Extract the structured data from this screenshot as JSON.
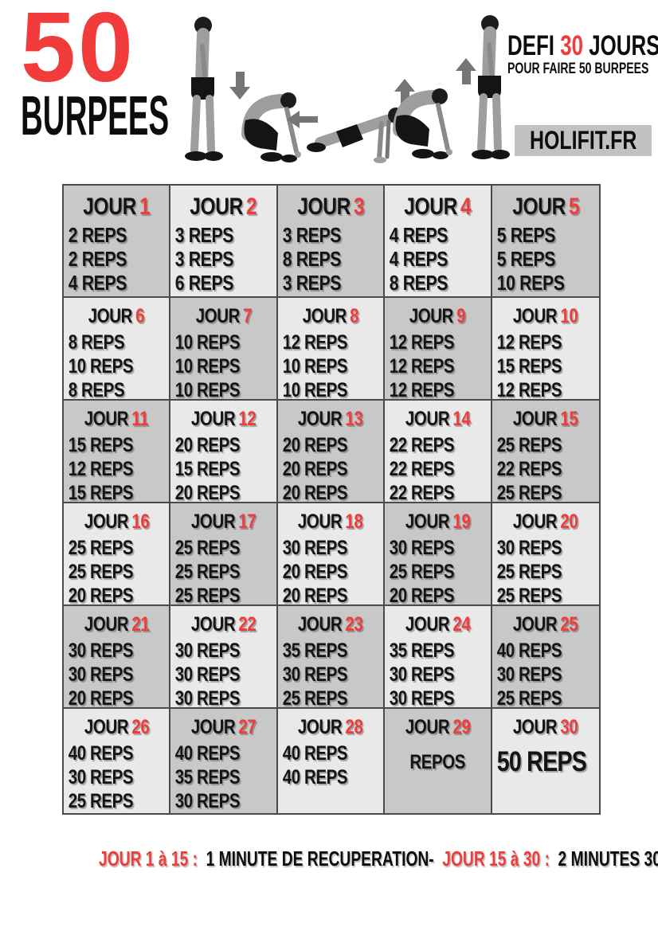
{
  "header": {
    "big_number": "50",
    "big_label": "BURPEES",
    "challenge_title_prefix": "DEFI",
    "challenge_title_number": "30",
    "challenge_title_suffix": "JOURS",
    "challenge_subtitle": "POUR FAIRE 50 BURPEES",
    "brand": "HOLIFIT.FR"
  },
  "illustration": {
    "alt": "Burpee exercise sequence: stand, squat down, plank, squat, jump up"
  },
  "colors": {
    "accent_red": "#f23b3b",
    "cell_dark": "#c8c8c8",
    "cell_light": "#e9e9e9",
    "grid_border": "#4a4a4a",
    "brand_bg": "#c2c2c2",
    "text_black": "#141414"
  },
  "grid": {
    "day_label": "JOUR",
    "days": [
      {
        "number": "1",
        "reps": [
          "2 REPS",
          "2 REPS",
          "4 REPS"
        ]
      },
      {
        "number": "2",
        "reps": [
          "3 REPS",
          "3 REPS",
          "6 REPS"
        ]
      },
      {
        "number": "3",
        "reps": [
          "3 REPS",
          "8 REPS",
          "3 REPS"
        ]
      },
      {
        "number": "4",
        "reps": [
          "4 REPS",
          "4 REPS",
          "8 REPS"
        ]
      },
      {
        "number": "5",
        "reps": [
          "5 REPS",
          "5 REPS",
          "10 REPS"
        ]
      },
      {
        "number": "6",
        "reps": [
          "8 REPS",
          "10 REPS",
          "8 REPS"
        ]
      },
      {
        "number": "7",
        "reps": [
          "10 REPS",
          "10 REPS",
          "10 REPS"
        ]
      },
      {
        "number": "8",
        "reps": [
          "12 REPS",
          "10 REPS",
          "10 REPS"
        ]
      },
      {
        "number": "9",
        "reps": [
          "12 REPS",
          "12 REPS",
          "12 REPS"
        ]
      },
      {
        "number": "10",
        "reps": [
          "12 REPS",
          "15 REPS",
          "12 REPS"
        ]
      },
      {
        "number": "11",
        "reps": [
          "15 REPS",
          "12 REPS",
          "15 REPS"
        ]
      },
      {
        "number": "12",
        "reps": [
          "20 REPS",
          "15 REPS",
          "20 REPS"
        ]
      },
      {
        "number": "13",
        "reps": [
          "20 REPS",
          "20 REPS",
          "20 REPS"
        ]
      },
      {
        "number": "14",
        "reps": [
          "22 REPS",
          "22 REPS",
          "22 REPS"
        ]
      },
      {
        "number": "15",
        "reps": [
          "25 REPS",
          "22 REPS",
          "25 REPS"
        ]
      },
      {
        "number": "16",
        "reps": [
          "25 REPS",
          "25 REPS",
          "20 REPS"
        ]
      },
      {
        "number": "17",
        "reps": [
          "25 REPS",
          "25 REPS",
          "25 REPS"
        ]
      },
      {
        "number": "18",
        "reps": [
          "30 REPS",
          "20 REPS",
          "20 REPS"
        ]
      },
      {
        "number": "19",
        "reps": [
          "30 REPS",
          "25 REPS",
          "20 REPS"
        ]
      },
      {
        "number": "20",
        "reps": [
          "30 REPS",
          "25 REPS",
          "25 REPS"
        ]
      },
      {
        "number": "21",
        "reps": [
          "30 REPS",
          "30 REPS",
          "20 REPS"
        ]
      },
      {
        "number": "22",
        "reps": [
          "30 REPS",
          "30 REPS",
          "30 REPS"
        ]
      },
      {
        "number": "23",
        "reps": [
          "35 REPS",
          "30 REPS",
          "25 REPS"
        ]
      },
      {
        "number": "24",
        "reps": [
          "35 REPS",
          "30 REPS",
          "30 REPS"
        ]
      },
      {
        "number": "25",
        "reps": [
          "40 REPS",
          "30 REPS",
          "25 REPS"
        ]
      },
      {
        "number": "26",
        "reps": [
          "40 REPS",
          "30 REPS",
          "25 REPS"
        ]
      },
      {
        "number": "27",
        "reps": [
          "40 REPS",
          "35 REPS",
          "30 REPS"
        ]
      },
      {
        "number": "28",
        "reps": [
          "40 REPS",
          "40 REPS"
        ]
      },
      {
        "number": "29",
        "reps": [],
        "note": "REPOS"
      },
      {
        "number": "30",
        "reps": [
          "50 REPS"
        ]
      }
    ]
  },
  "footer": {
    "segment1_label": "JOUR 1 à 15 :",
    "segment1_text": "1 MINUTE DE RECUPERATION-",
    "segment2_label": "JOUR 15 à 30 :",
    "segment2_text": "2 MINUTES 30"
  }
}
